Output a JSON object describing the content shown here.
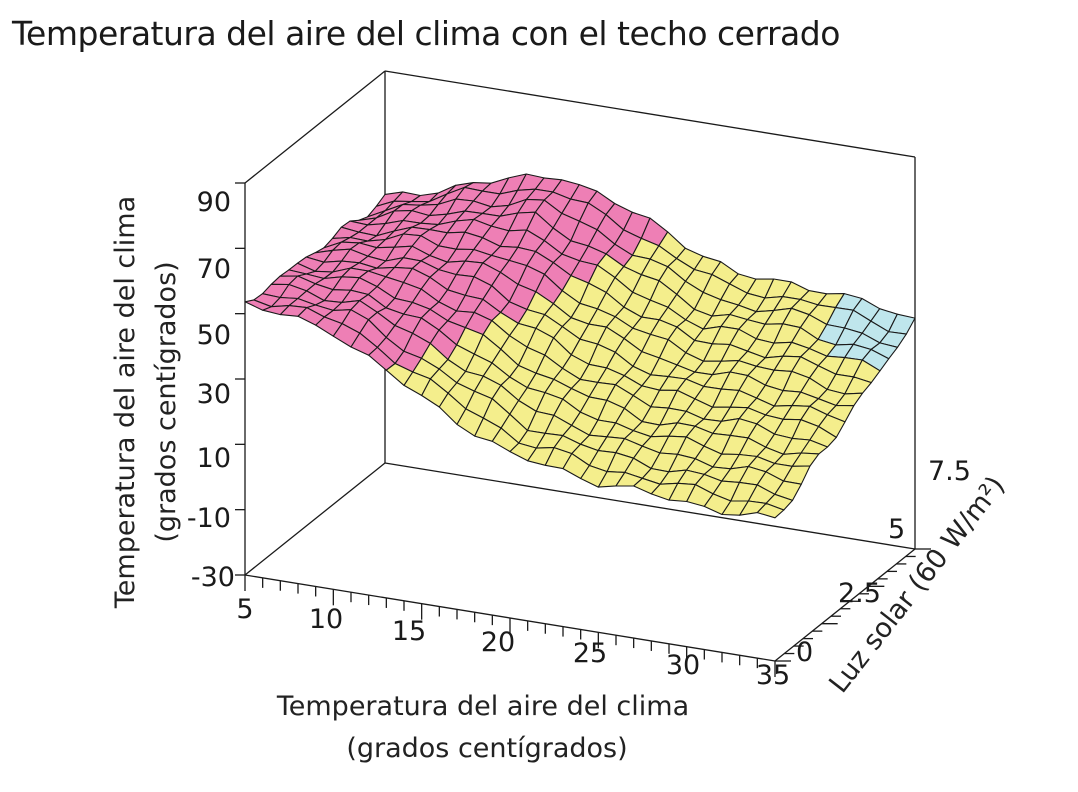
{
  "chart_data": {
    "type": "surface3d",
    "title": "Temperatura del aire del clima con el techo cerrado",
    "xlabel": [
      "Temperatura del aire del clima",
      "(grados centígrados)"
    ],
    "ylabel": "Luz solar (60 W/m²)",
    "zlabel": [
      "Temperatura del aire del clima",
      "(grados centígrados)"
    ],
    "x_ticks": [
      "5",
      "10",
      "15",
      "20",
      "25",
      "30",
      "35"
    ],
    "y_ticks": [
      "0",
      "2.5",
      "5",
      "7.5"
    ],
    "z_ticks": [
      "-30",
      "-10",
      "10",
      "30",
      "50",
      "70",
      "90"
    ],
    "xlim": [
      5,
      35
    ],
    "ylim": [
      0,
      7.5
    ],
    "zlim": [
      -30,
      90
    ],
    "grid": "bounding box with back walls",
    "color_regions": {
      "pink": "#ee7fb5",
      "yellow": "#f4ee8c",
      "cyan": "#bfe6ec",
      "mesh_line": "#1a1a1a"
    },
    "surface_profile": {
      "x": [
        5,
        10,
        15,
        20,
        25,
        30,
        35
      ],
      "z_at_y_max": [
        51,
        60,
        67,
        57,
        45,
        45,
        40
      ],
      "z_at_y_min": [
        53,
        49,
        33,
        20,
        16,
        14,
        13
      ]
    }
  }
}
